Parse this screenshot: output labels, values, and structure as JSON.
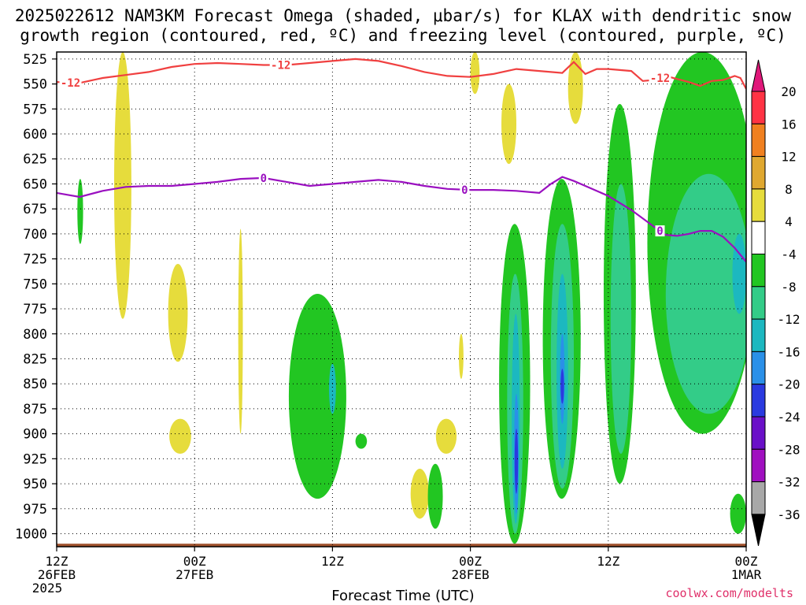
{
  "title_line1": "2025022612 NAM3KM Forecast Omega (shaded, μbar/s) for KLAX with dendritic snow",
  "title_line2": "growth region (contoured, red, ºC) and freezing level (contoured, purple, ºC)",
  "credit": "coolwx.com/modelts",
  "chart_data": {
    "type": "heatmap",
    "title": "2025022612 NAM3KM Forecast Omega (shaded, μbar/s) for KLAX with dendritic snow growth region (contoured, red, ºC) and freezing level (contoured, purple, ºC)",
    "xlabel": "Forecast Time (UTC)",
    "ylabel": "",
    "x_range_hours": [
      0,
      60
    ],
    "x_ticks": [
      {
        "hour": 0,
        "label": "12Z",
        "date": "26FEB",
        "year": "2025"
      },
      {
        "hour": 12,
        "label": "00Z",
        "date": "27FEB",
        "year": ""
      },
      {
        "hour": 24,
        "label": "12Z",
        "date": "",
        "year": ""
      },
      {
        "hour": 36,
        "label": "00Z",
        "date": "28FEB",
        "year": ""
      },
      {
        "hour": 48,
        "label": "12Z",
        "date": "",
        "year": ""
      },
      {
        "hour": 60,
        "label": "00Z",
        "date": "1MAR",
        "year": ""
      }
    ],
    "y_pressure_levels": [
      525,
      550,
      575,
      600,
      625,
      650,
      675,
      700,
      725,
      750,
      775,
      800,
      825,
      850,
      875,
      900,
      925,
      950,
      975,
      1000
    ],
    "y_range": [
      1013,
      518
    ],
    "grid": true,
    "colorbar": {
      "levels": [
        20,
        16,
        12,
        8,
        4,
        -4,
        -8,
        -12,
        -16,
        -20,
        -24,
        -28,
        -32,
        -36
      ],
      "bins": [
        {
          "range": [
            16,
            20
          ],
          "color": "#ff3344"
        },
        {
          "range": [
            12,
            16
          ],
          "color": "#f08020"
        },
        {
          "range": [
            8,
            12
          ],
          "color": "#e0a830"
        },
        {
          "range": [
            4,
            8
          ],
          "color": "#e6dc3c"
        },
        {
          "range": [
            -4,
            4
          ],
          "color": "#ffffff"
        },
        {
          "range": [
            -8,
            -4
          ],
          "color": "#22c622"
        },
        {
          "range": [
            -12,
            -8
          ],
          "color": "#33cc88"
        },
        {
          "range": [
            -16,
            -12
          ],
          "color": "#1cb8c0"
        },
        {
          "range": [
            -20,
            -16
          ],
          "color": "#2a90e8"
        },
        {
          "range": [
            -24,
            -20
          ],
          "color": "#2a3ae0"
        },
        {
          "range": [
            -28,
            -24
          ],
          "color": "#6a10c8"
        },
        {
          "range": [
            -32,
            -28
          ],
          "color": "#a010c0"
        },
        {
          "range": [
            -36,
            -32
          ],
          "color": "#a8a8a8"
        }
      ],
      "top_arrow_color": "#e0187a",
      "bottom_arrow_color": "#000000"
    },
    "contours": [
      {
        "label": "-12",
        "color": "#f04040",
        "points": [
          [
            0,
            548
          ],
          [
            2,
            549
          ],
          [
            4,
            544
          ],
          [
            6,
            541
          ],
          [
            8,
            538
          ],
          [
            10,
            533
          ],
          [
            12,
            530
          ],
          [
            14,
            529
          ],
          [
            16,
            530
          ],
          [
            18,
            531
          ],
          [
            20,
            531
          ],
          [
            22,
            529
          ],
          [
            24,
            527
          ],
          [
            26,
            525
          ],
          [
            28,
            527
          ],
          [
            30,
            532
          ],
          [
            32,
            538
          ],
          [
            34,
            542
          ],
          [
            36,
            543
          ],
          [
            38,
            540
          ],
          [
            40,
            535
          ],
          [
            42,
            537
          ],
          [
            44,
            539
          ],
          [
            45,
            528
          ],
          [
            46,
            540
          ],
          [
            47,
            535
          ],
          [
            48,
            535
          ],
          [
            50,
            537
          ],
          [
            51,
            547
          ],
          [
            52,
            546
          ],
          [
            53,
            542
          ],
          [
            54,
            545
          ],
          [
            55,
            548
          ],
          [
            56,
            552
          ],
          [
            57,
            547
          ],
          [
            58,
            546
          ],
          [
            59,
            542
          ],
          [
            59.5,
            544
          ],
          [
            60,
            555
          ]
        ],
        "label_hours": [
          1.2,
          19.5,
          52.5
        ]
      },
      {
        "label": "0",
        "color": "#9a10c0",
        "points": [
          [
            0,
            659
          ],
          [
            2,
            663
          ],
          [
            4,
            657
          ],
          [
            6,
            653
          ],
          [
            8,
            652
          ],
          [
            10,
            652
          ],
          [
            12,
            650
          ],
          [
            14,
            648
          ],
          [
            16,
            645
          ],
          [
            18,
            644
          ],
          [
            20,
            648
          ],
          [
            22,
            652
          ],
          [
            24,
            650
          ],
          [
            26,
            648
          ],
          [
            28,
            646
          ],
          [
            30,
            648
          ],
          [
            32,
            652
          ],
          [
            34,
            655
          ],
          [
            36,
            656
          ],
          [
            38,
            656
          ],
          [
            40,
            657
          ],
          [
            42,
            659
          ],
          [
            43,
            650
          ],
          [
            44,
            643
          ],
          [
            45,
            647
          ],
          [
            46,
            652
          ],
          [
            48,
            662
          ],
          [
            50,
            676
          ],
          [
            52,
            693
          ],
          [
            53,
            701
          ],
          [
            54,
            702
          ],
          [
            55,
            700
          ],
          [
            56,
            697
          ],
          [
            57,
            697
          ],
          [
            58,
            703
          ],
          [
            59,
            714
          ],
          [
            60,
            728
          ]
        ],
        "label_hours": [
          18,
          35.5,
          52.5
        ]
      }
    ],
    "surface_pressure_approx": 1010,
    "shaded_regions": [
      {
        "value_bin": [
          4,
          8
        ],
        "hours": [
          5.0,
          6.5
        ],
        "pressure": [
          518,
          785
        ]
      },
      {
        "value_bin": [
          4,
          8
        ],
        "hours": [
          9.7,
          11.4
        ],
        "pressure": [
          730,
          828
        ]
      },
      {
        "value_bin": [
          4,
          8
        ],
        "hours": [
          9.8,
          11.7
        ],
        "pressure": [
          885,
          920
        ]
      },
      {
        "value_bin": [
          4,
          8
        ],
        "hours": [
          15.8,
          16.2
        ],
        "pressure": [
          695,
          900
        ]
      },
      {
        "value_bin": [
          4,
          8
        ],
        "hours": [
          30.8,
          32.4
        ],
        "pressure": [
          935,
          985
        ]
      },
      {
        "value_bin": [
          4,
          8
        ],
        "hours": [
          33.0,
          34.8
        ],
        "pressure": [
          885,
          920
        ]
      },
      {
        "value_bin": [
          4,
          8
        ],
        "hours": [
          35.0,
          35.4
        ],
        "pressure": [
          800,
          845
        ]
      },
      {
        "value_bin": [
          4,
          8
        ],
        "hours": [
          36.0,
          36.8
        ],
        "pressure": [
          518,
          560
        ]
      },
      {
        "value_bin": [
          4,
          8
        ],
        "hours": [
          38.7,
          40.0
        ],
        "pressure": [
          550,
          630
        ]
      },
      {
        "value_bin": [
          4,
          8
        ],
        "hours": [
          44.5,
          45.8
        ],
        "pressure": [
          518,
          590
        ]
      },
      {
        "value_bin": [
          -8,
          -4
        ],
        "hours": [
          1.8,
          2.3
        ],
        "pressure": [
          645,
          710
        ]
      },
      {
        "value_bin": [
          -8,
          -4
        ],
        "hours": [
          20.2,
          25.2
        ],
        "pressure": [
          760,
          965
        ]
      },
      {
        "value_bin": [
          -8,
          -4
        ],
        "hours": [
          26.0,
          27.0
        ],
        "pressure": [
          900,
          915
        ]
      },
      {
        "value_bin": [
          -8,
          -4
        ],
        "hours": [
          32.3,
          33.6
        ],
        "pressure": [
          930,
          995
        ]
      },
      {
        "value_bin": [
          -8,
          -4
        ],
        "hours": [
          38.5,
          41.2
        ],
        "pressure": [
          690,
          1010
        ]
      },
      {
        "value_bin": [
          -8,
          -4
        ],
        "hours": [
          42.3,
          45.6
        ],
        "pressure": [
          645,
          965
        ]
      },
      {
        "value_bin": [
          -8,
          -4
        ],
        "hours": [
          47.6,
          50.4
        ],
        "pressure": [
          570,
          950
        ]
      },
      {
        "value_bin": [
          -8,
          -4
        ],
        "hours": [
          51.4,
          61.0
        ],
        "pressure": [
          518,
          900
        ]
      },
      {
        "value_bin": [
          -8,
          -4
        ],
        "hours": [
          58.6,
          60.0
        ],
        "pressure": [
          960,
          1000
        ]
      },
      {
        "value_bin": [
          -12,
          -8
        ],
        "hours": [
          39.2,
          40.6
        ],
        "pressure": [
          740,
          1000
        ]
      },
      {
        "value_bin": [
          -12,
          -8
        ],
        "hours": [
          43.0,
          45.0
        ],
        "pressure": [
          690,
          955
        ]
      },
      {
        "value_bin": [
          -12,
          -8
        ],
        "hours": [
          48.2,
          50.0
        ],
        "pressure": [
          650,
          920
        ]
      },
      {
        "value_bin": [
          -12,
          -8
        ],
        "hours": [
          53.0,
          60.5
        ],
        "pressure": [
          640,
          880
        ]
      },
      {
        "value_bin": [
          -16,
          -12
        ],
        "hours": [
          39.6,
          40.3
        ],
        "pressure": [
          780,
          990
        ]
      },
      {
        "value_bin": [
          -16,
          -12
        ],
        "hours": [
          43.5,
          44.5
        ],
        "pressure": [
          740,
          935
        ]
      },
      {
        "value_bin": [
          -16,
          -12
        ],
        "hours": [
          23.7,
          24.3
        ],
        "pressure": [
          830,
          880
        ]
      },
      {
        "value_bin": [
          -16,
          -12
        ],
        "hours": [
          58.8,
          60.0
        ],
        "pressure": [
          700,
          780
        ]
      },
      {
        "value_bin": [
          -20,
          -16
        ],
        "hours": [
          39.8,
          40.2
        ],
        "pressure": [
          860,
          980
        ]
      },
      {
        "value_bin": [
          -20,
          -16
        ],
        "hours": [
          43.8,
          44.2
        ],
        "pressure": [
          800,
          890
        ]
      },
      {
        "value_bin": [
          -24,
          -20
        ],
        "hours": [
          39.85,
          40.15
        ],
        "pressure": [
          895,
          960
        ]
      },
      {
        "value_bin": [
          -24,
          -20
        ],
        "hours": [
          43.85,
          44.15
        ],
        "pressure": [
          835,
          870
        ]
      }
    ]
  }
}
